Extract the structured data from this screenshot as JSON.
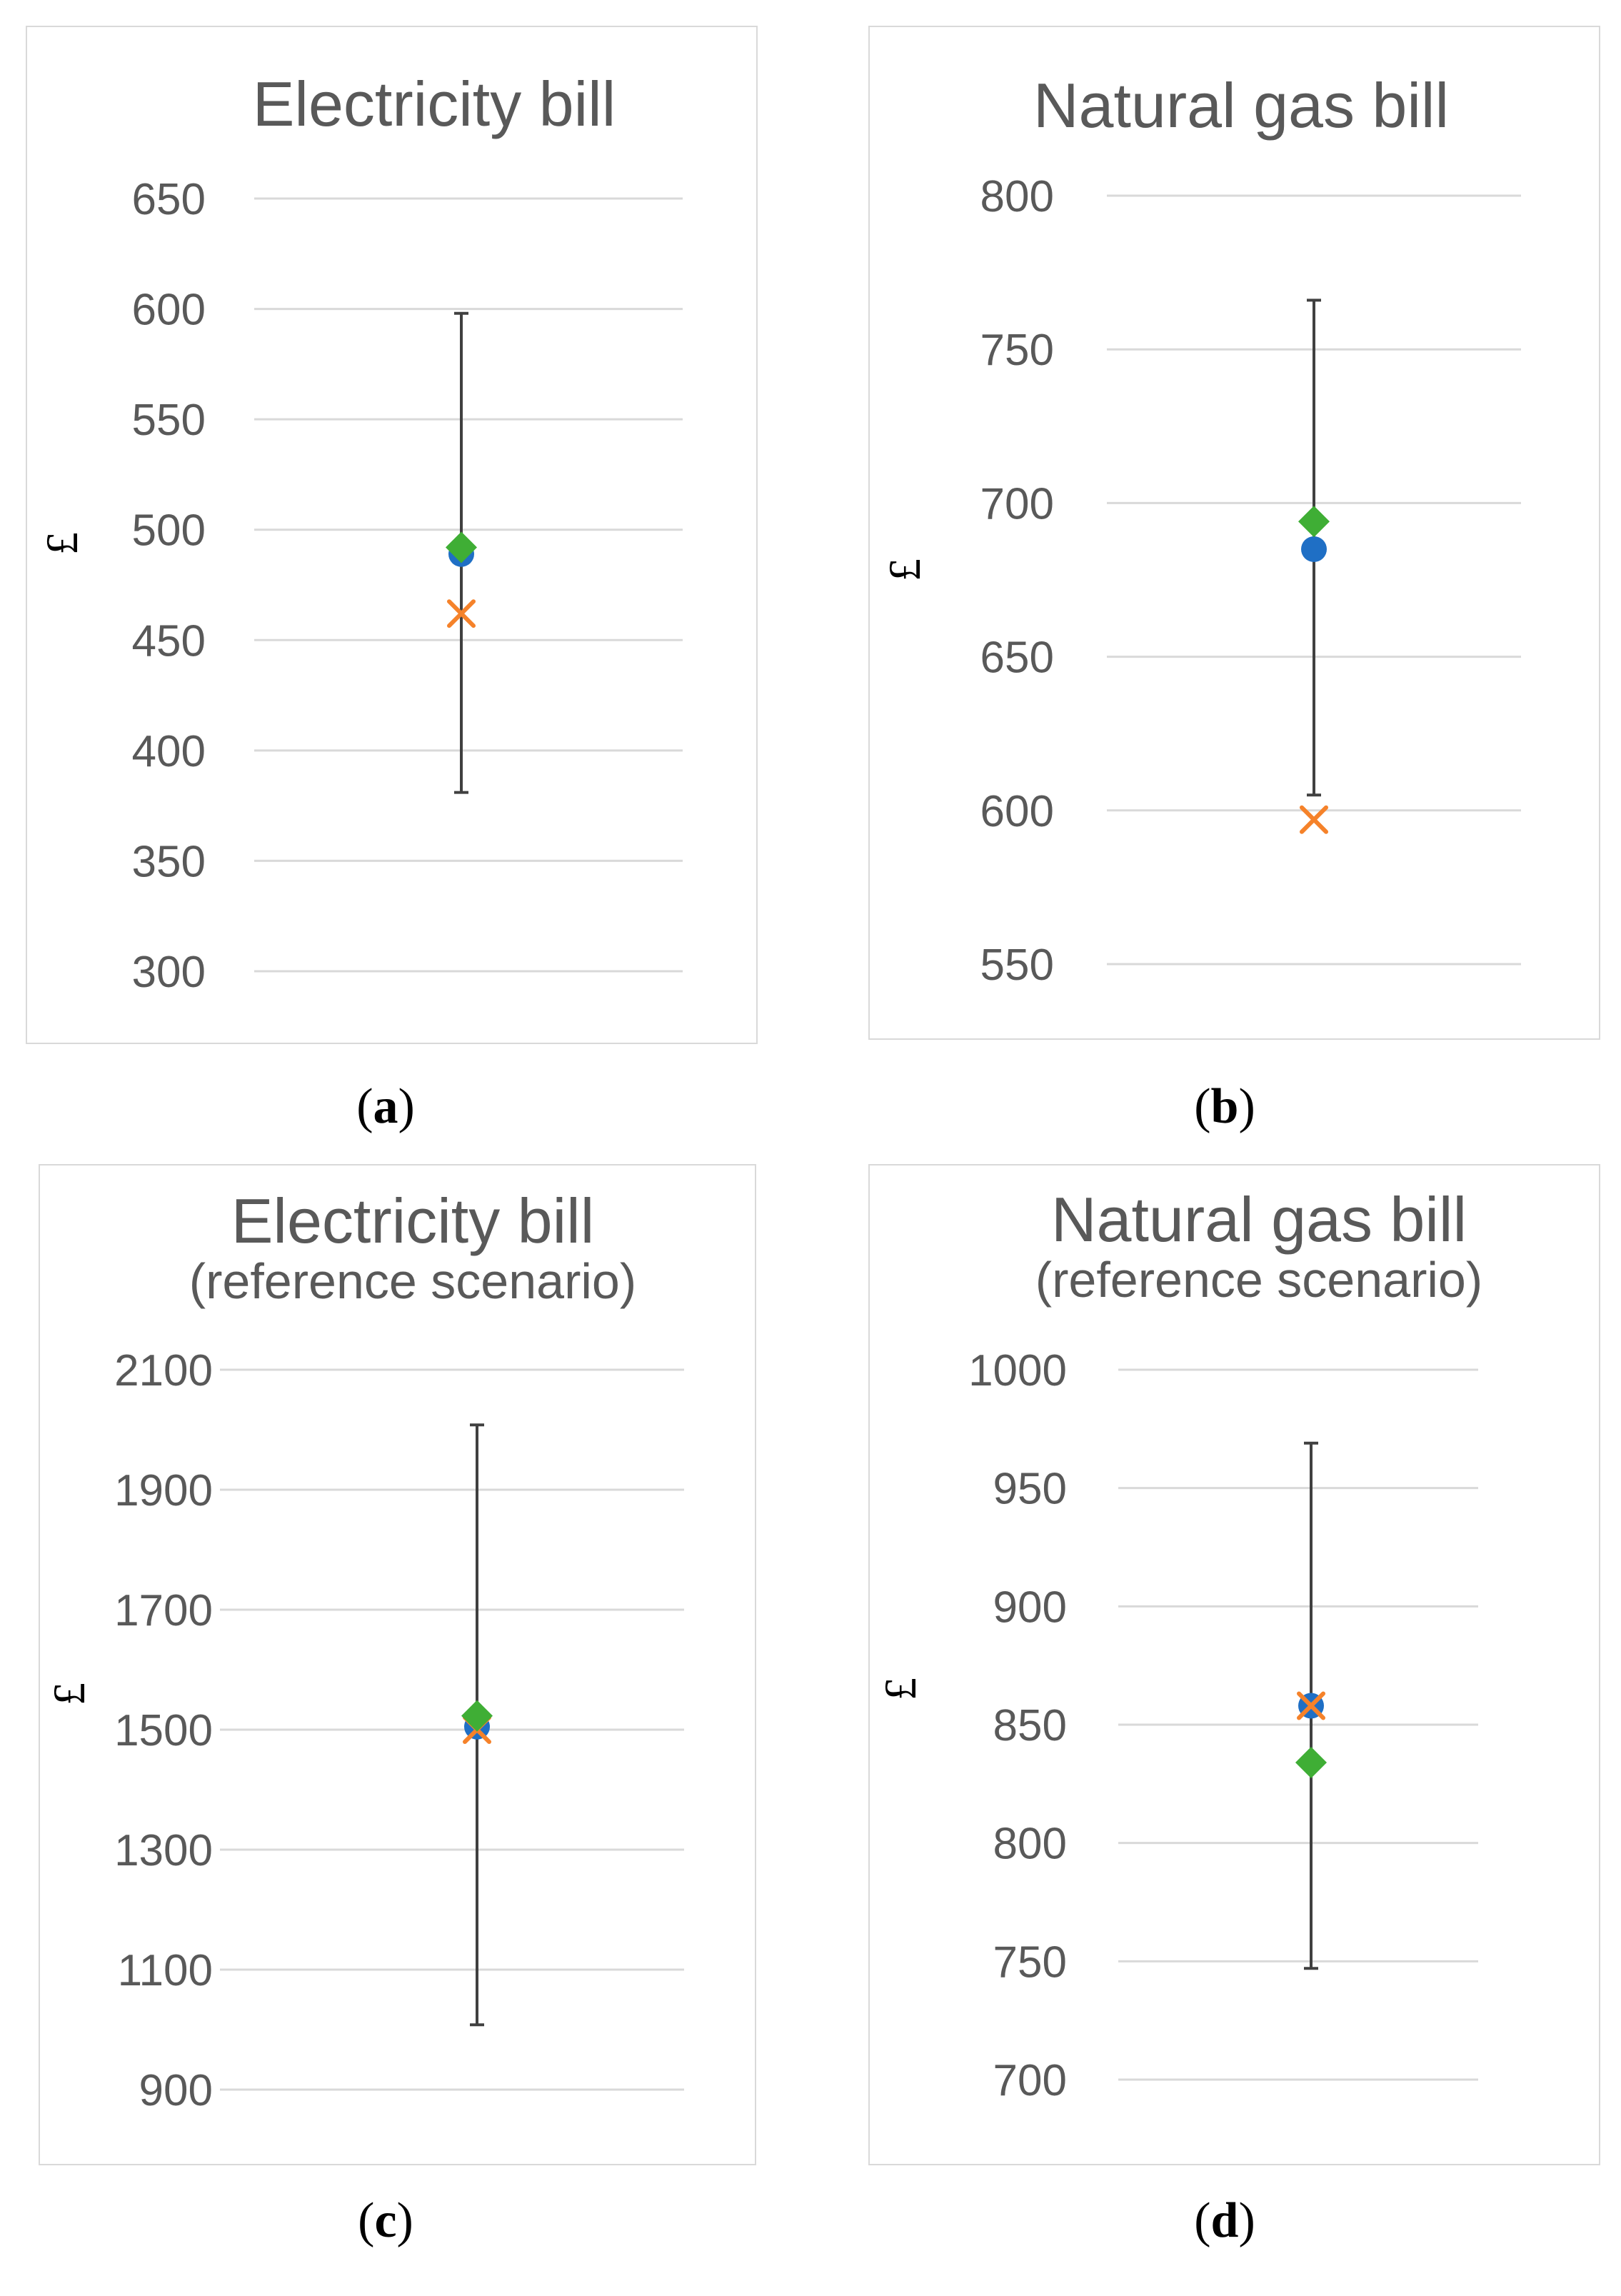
{
  "colors": {
    "gridline": "#d9d9d9",
    "errorbar": "#404040",
    "tick_label": "#595959",
    "title": "#595959",
    "series_circle": "#1f6fc5",
    "series_cross": "#f5822a",
    "series_diamond": "#3fae35"
  },
  "captions": [
    "a",
    "b",
    "c",
    "d"
  ],
  "chart_data": [
    {
      "type": "scatter",
      "title": "Electricity bill",
      "subtitle": "",
      "ylabel": "£",
      "ylim": [
        300,
        650
      ],
      "yticks": [
        300,
        350,
        400,
        450,
        500,
        550,
        600,
        650
      ],
      "grid": true,
      "error_bar": {
        "low": 381,
        "high": 598
      },
      "series": [
        {
          "name": "circle",
          "marker": "circle",
          "value": 489
        },
        {
          "name": "cross",
          "marker": "cross",
          "value": 462
        },
        {
          "name": "diamond",
          "marker": "diamond",
          "value": 492
        }
      ]
    },
    {
      "type": "scatter",
      "title": "Natural gas bill",
      "subtitle": "",
      "ylabel": "£",
      "ylim": [
        550,
        800
      ],
      "yticks": [
        550,
        600,
        650,
        700,
        750,
        800
      ],
      "grid": true,
      "error_bar": {
        "low": 605,
        "high": 766
      },
      "series": [
        {
          "name": "circle",
          "marker": "circle",
          "value": 685
        },
        {
          "name": "cross",
          "marker": "cross",
          "value": 597
        },
        {
          "name": "diamond",
          "marker": "diamond",
          "value": 694
        }
      ]
    },
    {
      "type": "scatter",
      "title": "Electricity bill",
      "subtitle": "(reference scenario)",
      "ylabel": "£",
      "ylim": [
        900,
        2100
      ],
      "yticks": [
        900,
        1100,
        1300,
        1500,
        1700,
        1900,
        2100
      ],
      "grid": true,
      "error_bar": {
        "low": 1008,
        "high": 2008
      },
      "series": [
        {
          "name": "circle",
          "marker": "circle",
          "value": 1505
        },
        {
          "name": "cross",
          "marker": "cross",
          "value": 1500
        },
        {
          "name": "diamond",
          "marker": "diamond",
          "value": 1523
        }
      ]
    },
    {
      "type": "scatter",
      "title": "Natural gas bill",
      "subtitle": "(reference scenario)",
      "ylabel": "£",
      "ylim": [
        700,
        1000
      ],
      "yticks": [
        700,
        750,
        800,
        850,
        900,
        950,
        1000
      ],
      "grid": true,
      "error_bar": {
        "low": 747,
        "high": 969
      },
      "series": [
        {
          "name": "circle",
          "marker": "circle",
          "value": 858
        },
        {
          "name": "cross",
          "marker": "cross",
          "value": 858
        },
        {
          "name": "diamond",
          "marker": "diamond",
          "value": 834
        }
      ]
    }
  ]
}
